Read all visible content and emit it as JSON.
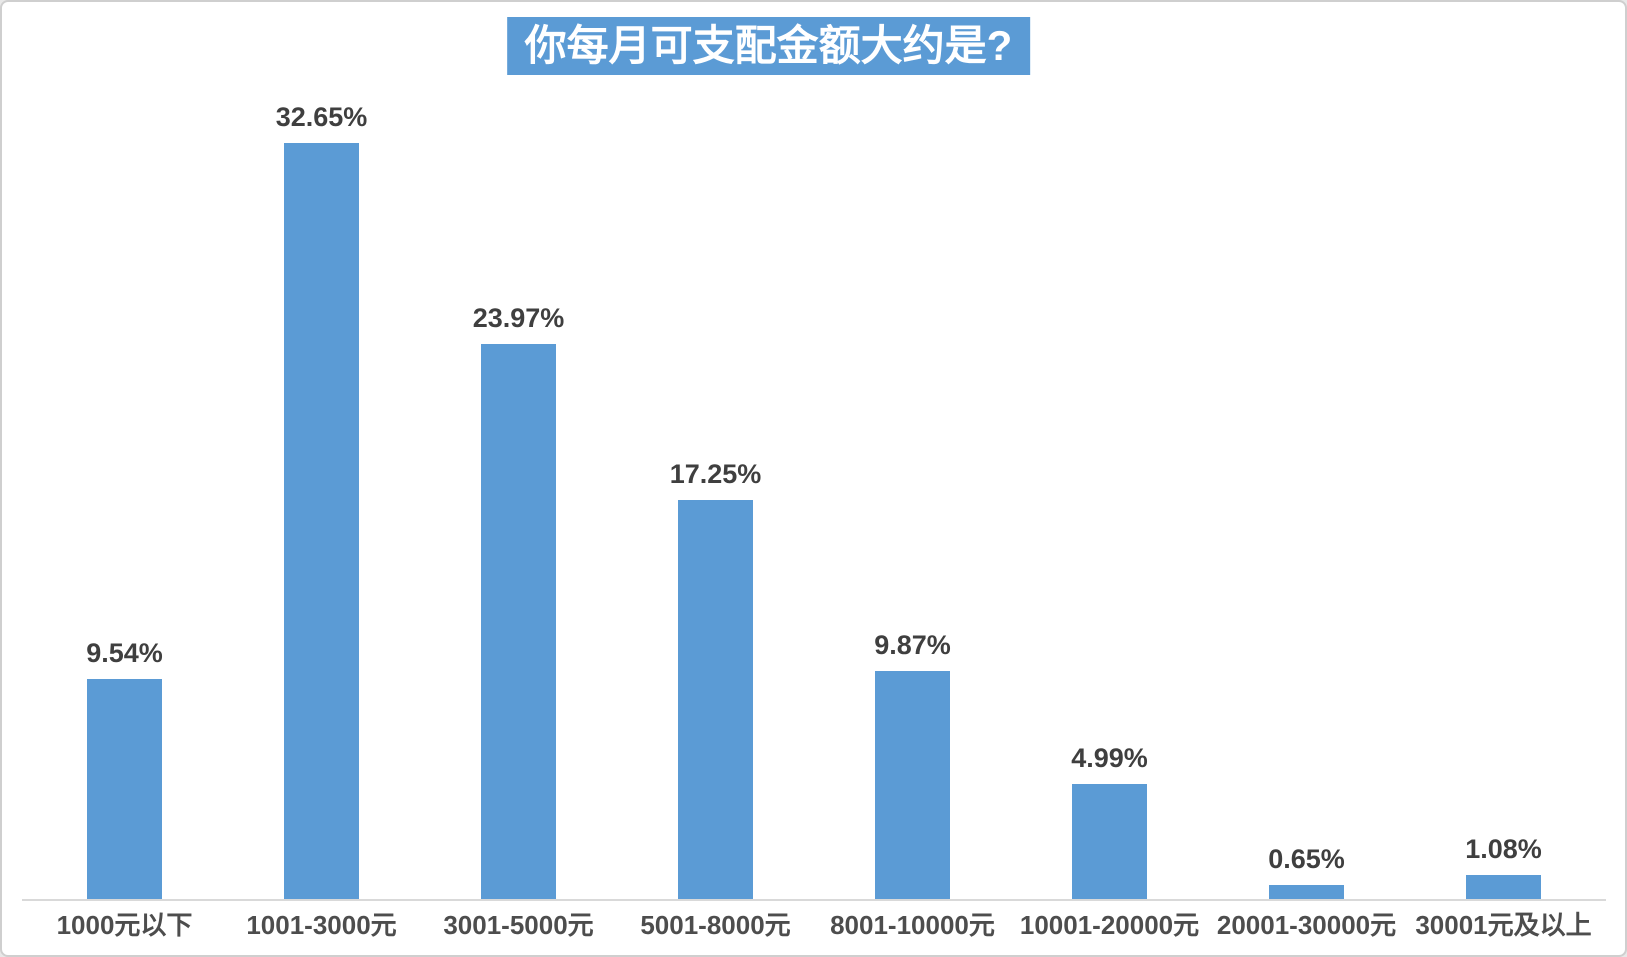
{
  "frame": {
    "background_color": "#ffffff",
    "border_color": "#cfcfcf"
  },
  "chart_data": {
    "type": "bar",
    "title": "你每月可支配金额大约是?",
    "categories": [
      "1000元以下",
      "1001-3000元",
      "3001-5000元",
      "5001-8000元",
      "8001-10000元",
      "10001-20000元",
      "20001-30000元",
      "30001元及以上"
    ],
    "values": [
      9.54,
      32.65,
      23.97,
      17.25,
      9.87,
      4.99,
      0.65,
      1.08
    ],
    "data_labels": [
      "9.54%",
      "32.65%",
      "23.97%",
      "17.25%",
      "9.87%",
      "4.99%",
      "0.65%",
      "1.08%"
    ],
    "xlabel": "",
    "ylabel": "",
    "ylim": [
      0,
      35
    ],
    "grid": false,
    "legend": "none",
    "bar_color": "#5B9BD5",
    "title_bg_color": "#5B9BD5",
    "title_text_color": "#FFFFFF",
    "data_label_color": "#3F3F3F",
    "axis_label_color": "#4D4D4D",
    "axis_line_color": "#D9D9D9"
  }
}
